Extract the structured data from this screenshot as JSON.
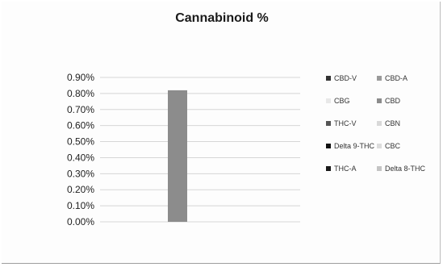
{
  "chart_data": {
    "type": "bar",
    "title": "Cannabinoid %",
    "xlabel": "",
    "ylabel": "",
    "ylim": [
      0,
      0.009
    ],
    "y_ticks": [
      "0.90%",
      "0.80%",
      "0.70%",
      "0.60%",
      "0.50%",
      "0.40%",
      "0.30%",
      "0.20%",
      "0.10%",
      "0.00%"
    ],
    "grid": true,
    "legend_position": "right",
    "categories": [
      ""
    ],
    "series": [
      {
        "name": "CBD-V",
        "values": [
          0
        ],
        "color": "#333333"
      },
      {
        "name": "CBD-A",
        "values": [
          0
        ],
        "color": "#9a9a9a"
      },
      {
        "name": "CBG",
        "values": [
          0
        ],
        "color": "#e8e8e8"
      },
      {
        "name": "CBD",
        "values": [
          0.0082
        ],
        "color": "#8c8c8c"
      },
      {
        "name": "THC-V",
        "values": [
          0
        ],
        "color": "#555555"
      },
      {
        "name": "CBN",
        "values": [
          0
        ],
        "color": "#d9d9d9"
      },
      {
        "name": "Delta 9-THC",
        "values": [
          0
        ],
        "color": "#111111"
      },
      {
        "name": "CBC",
        "values": [
          0
        ],
        "color": "#dcdcdc"
      },
      {
        "name": "THC-A",
        "values": [
          0
        ],
        "color": "#1a1a1a"
      },
      {
        "name": "Delta 8-THC",
        "values": [
          0
        ],
        "color": "#c4c4c4"
      }
    ]
  }
}
